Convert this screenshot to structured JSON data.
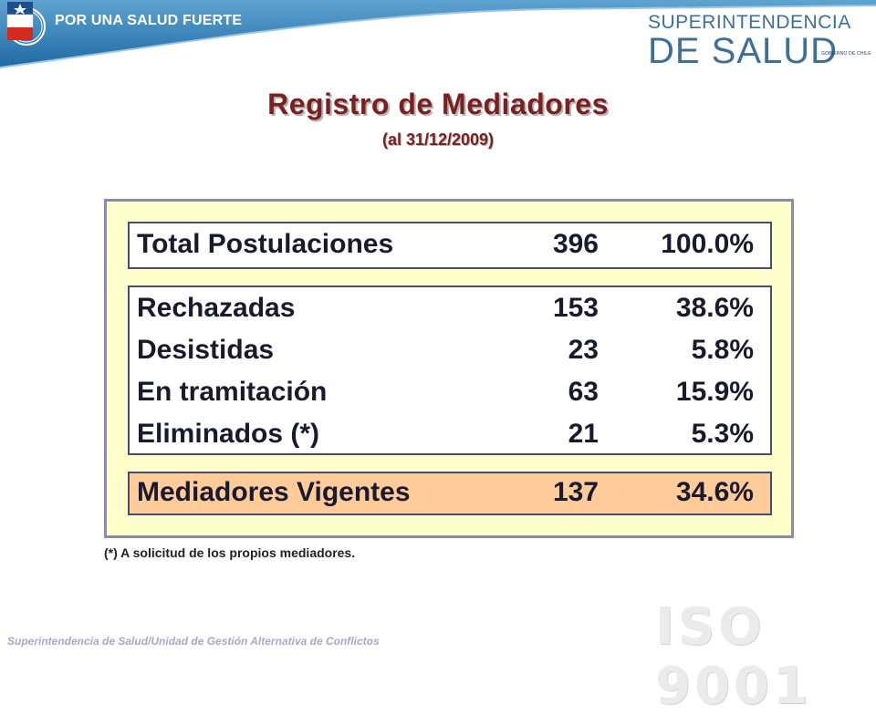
{
  "header": {
    "slogan": "POR UNA SALUD FUERTE",
    "brand_top": "SUPERINTENDENCIA",
    "brand_bottom": "DE SALUD",
    "gov_caption": "GOBIERNO DE CHILE"
  },
  "title": "Registro de Mediadores",
  "subtitle": "(al 31/12/2009)",
  "table": {
    "total": {
      "label": "Total Postulaciones",
      "count": "396",
      "percent": "100.0%"
    },
    "details": [
      {
        "label": "Rechazadas",
        "count": "153",
        "percent": "38.6%"
      },
      {
        "label": "Desistidas",
        "count": "23",
        "percent": "5.8%"
      },
      {
        "label": "En tramitación",
        "count": "63",
        "percent": "15.9%"
      },
      {
        "label": "Eliminados (*)",
        "count": "21",
        "percent": "5.3%"
      }
    ],
    "vigentes": {
      "label": "Mediadores Vigentes",
      "count": "137",
      "percent": "34.6%"
    }
  },
  "footnote": "(*) A solicitud de los propios mediadores.",
  "footer": "Superintendencia de Salud/Unidad de Gestión Alternativa de Conflictos",
  "watermark": "ISO 9001",
  "colors": {
    "title": "#7a2020",
    "panel_bg": "#ffffcc",
    "vigentes_bg": "#ffcc99",
    "banner": "#2f7fb5"
  }
}
